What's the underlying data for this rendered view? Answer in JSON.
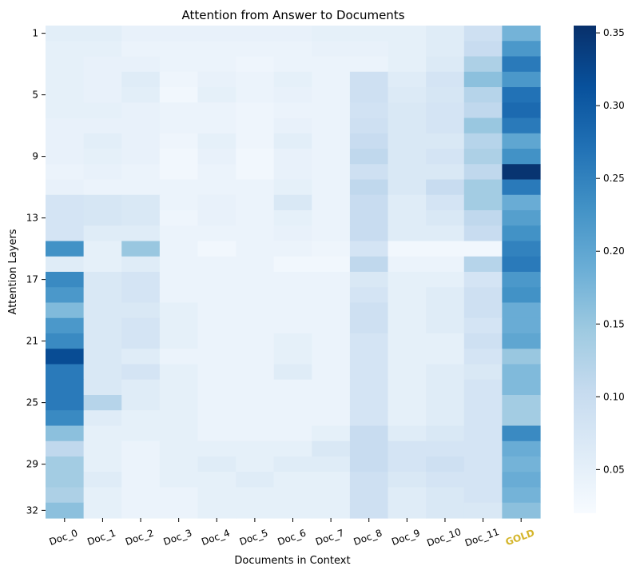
{
  "chart_data": {
    "type": "heatmap",
    "title": "Attention from Answer to Documents",
    "xlabel": "Documents in Context",
    "ylabel": "Attention Layers",
    "columns": [
      "Doc_0",
      "Doc_1",
      "Doc_2",
      "Doc_3",
      "Doc_4",
      "Doc_5",
      "Doc_6",
      "Doc_7",
      "Doc_8",
      "Doc_9",
      "Doc_10",
      "Doc_11",
      "GOLD"
    ],
    "highlight_column": "GOLD",
    "highlight_color": "#d4b52a",
    "y_tick_labels": [
      "1",
      "5",
      "9",
      "13",
      "17",
      "21",
      "25",
      "29",
      "32"
    ],
    "y_tick_layers": [
      1,
      5,
      9,
      13,
      17,
      21,
      25,
      29,
      32
    ],
    "rows": [
      1,
      2,
      3,
      4,
      5,
      6,
      7,
      8,
      9,
      10,
      11,
      12,
      13,
      14,
      15,
      16,
      17,
      18,
      19,
      20,
      21,
      22,
      23,
      24,
      25,
      26,
      27,
      28,
      29,
      30,
      31,
      32
    ],
    "values": [
      [
        0.055,
        0.055,
        0.045,
        0.045,
        0.045,
        0.045,
        0.045,
        0.05,
        0.05,
        0.05,
        0.06,
        0.09,
        0.18
      ],
      [
        0.05,
        0.05,
        0.04,
        0.04,
        0.04,
        0.04,
        0.04,
        0.045,
        0.045,
        0.05,
        0.06,
        0.1,
        0.22
      ],
      [
        0.05,
        0.045,
        0.045,
        0.04,
        0.04,
        0.035,
        0.04,
        0.04,
        0.04,
        0.05,
        0.065,
        0.13,
        0.26
      ],
      [
        0.05,
        0.045,
        0.06,
        0.035,
        0.045,
        0.04,
        0.05,
        0.04,
        0.09,
        0.06,
        0.08,
        0.16,
        0.22
      ],
      [
        0.05,
        0.045,
        0.055,
        0.03,
        0.05,
        0.04,
        0.045,
        0.04,
        0.09,
        0.065,
        0.075,
        0.12,
        0.27
      ],
      [
        0.05,
        0.05,
        0.045,
        0.04,
        0.04,
        0.035,
        0.04,
        0.04,
        0.085,
        0.07,
        0.08,
        0.11,
        0.28
      ],
      [
        0.045,
        0.045,
        0.045,
        0.04,
        0.04,
        0.035,
        0.045,
        0.04,
        0.09,
        0.07,
        0.08,
        0.15,
        0.26
      ],
      [
        0.045,
        0.055,
        0.045,
        0.035,
        0.05,
        0.035,
        0.055,
        0.04,
        0.1,
        0.07,
        0.07,
        0.12,
        0.2
      ],
      [
        0.045,
        0.05,
        0.045,
        0.03,
        0.045,
        0.03,
        0.045,
        0.04,
        0.11,
        0.07,
        0.08,
        0.13,
        0.23
      ],
      [
        0.04,
        0.045,
        0.04,
        0.03,
        0.04,
        0.03,
        0.045,
        0.04,
        0.09,
        0.07,
        0.07,
        0.11,
        0.35
      ],
      [
        0.045,
        0.04,
        0.04,
        0.04,
        0.04,
        0.04,
        0.05,
        0.04,
        0.11,
        0.07,
        0.1,
        0.14,
        0.26
      ],
      [
        0.08,
        0.075,
        0.07,
        0.04,
        0.045,
        0.04,
        0.07,
        0.04,
        0.1,
        0.06,
        0.08,
        0.14,
        0.19
      ],
      [
        0.08,
        0.075,
        0.07,
        0.035,
        0.045,
        0.04,
        0.05,
        0.04,
        0.1,
        0.06,
        0.07,
        0.11,
        0.21
      ],
      [
        0.08,
        0.06,
        0.06,
        0.04,
        0.04,
        0.04,
        0.045,
        0.04,
        0.1,
        0.06,
        0.06,
        0.1,
        0.23
      ],
      [
        0.23,
        0.05,
        0.15,
        0.04,
        0.03,
        0.04,
        0.04,
        0.035,
        0.08,
        0.03,
        0.03,
        0.03,
        0.25
      ],
      [
        0.06,
        0.05,
        0.06,
        0.04,
        0.04,
        0.04,
        0.03,
        0.03,
        0.11,
        0.04,
        0.04,
        0.12,
        0.26
      ],
      [
        0.24,
        0.07,
        0.08,
        0.04,
        0.04,
        0.04,
        0.04,
        0.04,
        0.07,
        0.05,
        0.05,
        0.08,
        0.22
      ],
      [
        0.22,
        0.07,
        0.08,
        0.04,
        0.04,
        0.04,
        0.04,
        0.04,
        0.08,
        0.05,
        0.06,
        0.09,
        0.23
      ],
      [
        0.17,
        0.07,
        0.07,
        0.05,
        0.04,
        0.04,
        0.04,
        0.04,
        0.09,
        0.05,
        0.06,
        0.09,
        0.19
      ],
      [
        0.22,
        0.07,
        0.08,
        0.05,
        0.04,
        0.04,
        0.04,
        0.04,
        0.09,
        0.05,
        0.06,
        0.08,
        0.19
      ],
      [
        0.24,
        0.07,
        0.08,
        0.05,
        0.04,
        0.04,
        0.05,
        0.04,
        0.08,
        0.05,
        0.05,
        0.09,
        0.2
      ],
      [
        0.32,
        0.07,
        0.06,
        0.04,
        0.04,
        0.04,
        0.05,
        0.04,
        0.08,
        0.05,
        0.05,
        0.08,
        0.15
      ],
      [
        0.26,
        0.07,
        0.08,
        0.05,
        0.04,
        0.04,
        0.06,
        0.04,
        0.08,
        0.05,
        0.06,
        0.07,
        0.17
      ],
      [
        0.26,
        0.07,
        0.06,
        0.05,
        0.04,
        0.04,
        0.04,
        0.04,
        0.08,
        0.05,
        0.06,
        0.08,
        0.17
      ],
      [
        0.26,
        0.12,
        0.06,
        0.05,
        0.04,
        0.04,
        0.04,
        0.04,
        0.08,
        0.05,
        0.06,
        0.08,
        0.14
      ],
      [
        0.24,
        0.06,
        0.05,
        0.05,
        0.04,
        0.04,
        0.04,
        0.04,
        0.08,
        0.05,
        0.06,
        0.08,
        0.14
      ],
      [
        0.16,
        0.05,
        0.05,
        0.05,
        0.04,
        0.04,
        0.04,
        0.05,
        0.1,
        0.06,
        0.07,
        0.08,
        0.24
      ],
      [
        0.11,
        0.05,
        0.04,
        0.05,
        0.05,
        0.05,
        0.05,
        0.07,
        0.1,
        0.08,
        0.08,
        0.08,
        0.19
      ],
      [
        0.14,
        0.05,
        0.04,
        0.05,
        0.06,
        0.05,
        0.06,
        0.06,
        0.1,
        0.08,
        0.09,
        0.08,
        0.18
      ],
      [
        0.14,
        0.06,
        0.04,
        0.05,
        0.05,
        0.06,
        0.05,
        0.05,
        0.09,
        0.07,
        0.08,
        0.08,
        0.19
      ],
      [
        0.13,
        0.05,
        0.04,
        0.04,
        0.05,
        0.05,
        0.05,
        0.05,
        0.09,
        0.06,
        0.07,
        0.08,
        0.18
      ],
      [
        0.16,
        0.05,
        0.04,
        0.04,
        0.05,
        0.05,
        0.05,
        0.05,
        0.09,
        0.06,
        0.07,
        0.07,
        0.16
      ]
    ],
    "colormap": "Blues",
    "vmin": 0.02,
    "vmax": 0.355,
    "colorbar_ticks": [
      0.05,
      0.1,
      0.15,
      0.2,
      0.25,
      0.3,
      0.35
    ],
    "colorbar_tick_labels": [
      "0.05",
      "0.10",
      "0.15",
      "0.20",
      "0.25",
      "0.30",
      "0.35"
    ]
  }
}
